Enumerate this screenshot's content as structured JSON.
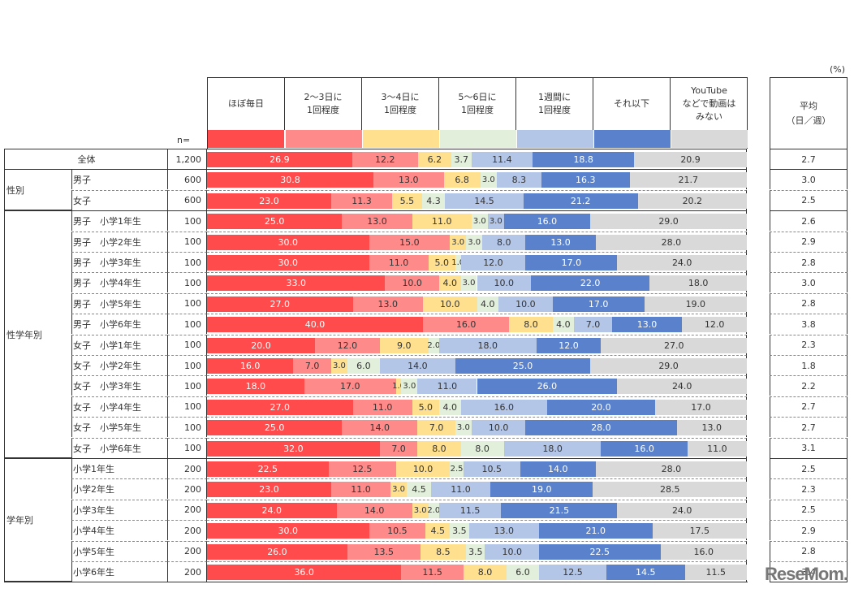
{
  "unit_label": "(%)",
  "n_label": "n=",
  "avg_header": "平均\n（日／週）",
  "watermark": "ReseMom.",
  "colors": [
    "#ff4b4b",
    "#ff8a8a",
    "#ffe08f",
    "#e2efda",
    "#b4c6e7",
    "#5a82cc",
    "#d9d9d9"
  ],
  "text_colors": [
    "#ffffff",
    "#333333",
    "#333333",
    "#333333",
    "#333333",
    "#ffffff",
    "#333333"
  ],
  "chart_data": {
    "type": "bar",
    "orientation": "horizontal-stacked-100",
    "title": "",
    "xlabel": "",
    "ylabel": "",
    "unit": "%",
    "xlim": [
      0,
      100
    ],
    "legend_position": "top",
    "categories_legend": [
      "ほぼ毎日",
      "2～3日に\n1回程度",
      "3～4日に\n1回程度",
      "5～6日に\n1回程度",
      "1週間に\n1回程度",
      "それ以下",
      "YouTube\nなどで動画は\nみない"
    ],
    "rows": [
      {
        "group": "",
        "label": "全体",
        "n": "1,200",
        "values": [
          26.9,
          12.2,
          6.2,
          3.7,
          11.4,
          18.8,
          20.9
        ],
        "avg": "2.7"
      },
      {
        "group": "性別",
        "label": "男子",
        "n": "600",
        "values": [
          30.8,
          13.0,
          6.8,
          3.0,
          8.3,
          16.3,
          21.7
        ],
        "avg": "3.0"
      },
      {
        "group": "性別",
        "label": "女子",
        "n": "600",
        "values": [
          23.0,
          11.3,
          5.5,
          4.3,
          14.5,
          21.2,
          20.2
        ],
        "avg": "2.5"
      },
      {
        "group": "性学年別",
        "label": "男子　小学1年生",
        "n": "100",
        "values": [
          25.0,
          13.0,
          11.0,
          3.0,
          3.0,
          16.0,
          29.0
        ],
        "avg": "2.6"
      },
      {
        "group": "性学年別",
        "label": "男子　小学2年生",
        "n": "100",
        "values": [
          30.0,
          15.0,
          3.0,
          3.0,
          8.0,
          13.0,
          28.0
        ],
        "avg": "2.9"
      },
      {
        "group": "性学年別",
        "label": "男子　小学3年生",
        "n": "100",
        "values": [
          30.0,
          11.0,
          5.0,
          1.0,
          12.0,
          17.0,
          24.0
        ],
        "avg": "2.8"
      },
      {
        "group": "性学年別",
        "label": "男子　小学4年生",
        "n": "100",
        "values": [
          33.0,
          10.0,
          4.0,
          3.0,
          10.0,
          22.0,
          18.0
        ],
        "avg": "3.0"
      },
      {
        "group": "性学年別",
        "label": "男子　小学5年生",
        "n": "100",
        "values": [
          27.0,
          13.0,
          10.0,
          4.0,
          10.0,
          17.0,
          19.0
        ],
        "avg": "2.8"
      },
      {
        "group": "性学年別",
        "label": "男子　小学6年生",
        "n": "100",
        "values": [
          40.0,
          16.0,
          8.0,
          4.0,
          7.0,
          13.0,
          12.0
        ],
        "avg": "3.8"
      },
      {
        "group": "性学年別",
        "label": "女子　小学1年生",
        "n": "100",
        "values": [
          20.0,
          12.0,
          9.0,
          2.0,
          18.0,
          12.0,
          27.0
        ],
        "avg": "2.3"
      },
      {
        "group": "性学年別",
        "label": "女子　小学2年生",
        "n": "100",
        "values": [
          16.0,
          7.0,
          3.0,
          6.0,
          14.0,
          25.0,
          29.0
        ],
        "avg": "1.8"
      },
      {
        "group": "性学年別",
        "label": "女子　小学3年生",
        "n": "100",
        "values": [
          18.0,
          17.0,
          1.0,
          3.0,
          11.0,
          26.0,
          24.0
        ],
        "avg": "2.2"
      },
      {
        "group": "性学年別",
        "label": "女子　小学4年生",
        "n": "100",
        "values": [
          27.0,
          11.0,
          5.0,
          4.0,
          16.0,
          20.0,
          17.0
        ],
        "avg": "2.7"
      },
      {
        "group": "性学年別",
        "label": "女子　小学5年生",
        "n": "100",
        "values": [
          25.0,
          14.0,
          7.0,
          3.0,
          10.0,
          28.0,
          13.0
        ],
        "avg": "2.7"
      },
      {
        "group": "性学年別",
        "label": "女子　小学6年生",
        "n": "100",
        "values": [
          32.0,
          7.0,
          8.0,
          8.0,
          18.0,
          16.0,
          11.0
        ],
        "avg": "3.1"
      },
      {
        "group": "学年別",
        "label": "小学1年生",
        "n": "200",
        "values": [
          22.5,
          12.5,
          10.0,
          2.5,
          10.5,
          14.0,
          28.0
        ],
        "avg": "2.5"
      },
      {
        "group": "学年別",
        "label": "小学2年生",
        "n": "200",
        "values": [
          23.0,
          11.0,
          3.0,
          4.5,
          11.0,
          19.0,
          28.5
        ],
        "avg": "2.3"
      },
      {
        "group": "学年別",
        "label": "小学3年生",
        "n": "200",
        "values": [
          24.0,
          14.0,
          3.0,
          2.0,
          11.5,
          21.5,
          24.0
        ],
        "avg": "2.5"
      },
      {
        "group": "学年別",
        "label": "小学4年生",
        "n": "200",
        "values": [
          30.0,
          10.5,
          4.5,
          3.5,
          13.0,
          21.0,
          17.5
        ],
        "avg": "2.9"
      },
      {
        "group": "学年別",
        "label": "小学5年生",
        "n": "200",
        "values": [
          26.0,
          13.5,
          8.5,
          3.5,
          10.0,
          22.5,
          16.0
        ],
        "avg": "2.8"
      },
      {
        "group": "学年別",
        "label": "小学6年生",
        "n": "200",
        "values": [
          36.0,
          11.5,
          8.0,
          6.0,
          12.5,
          14.5,
          11.5
        ],
        "avg": "3.4"
      }
    ],
    "groups": [
      {
        "name": "",
        "start": 0,
        "count": 1
      },
      {
        "name": "性別",
        "start": 1,
        "count": 2
      },
      {
        "name": "性学年別",
        "start": 3,
        "count": 12
      },
      {
        "name": "学年別",
        "start": 15,
        "count": 6
      }
    ]
  }
}
